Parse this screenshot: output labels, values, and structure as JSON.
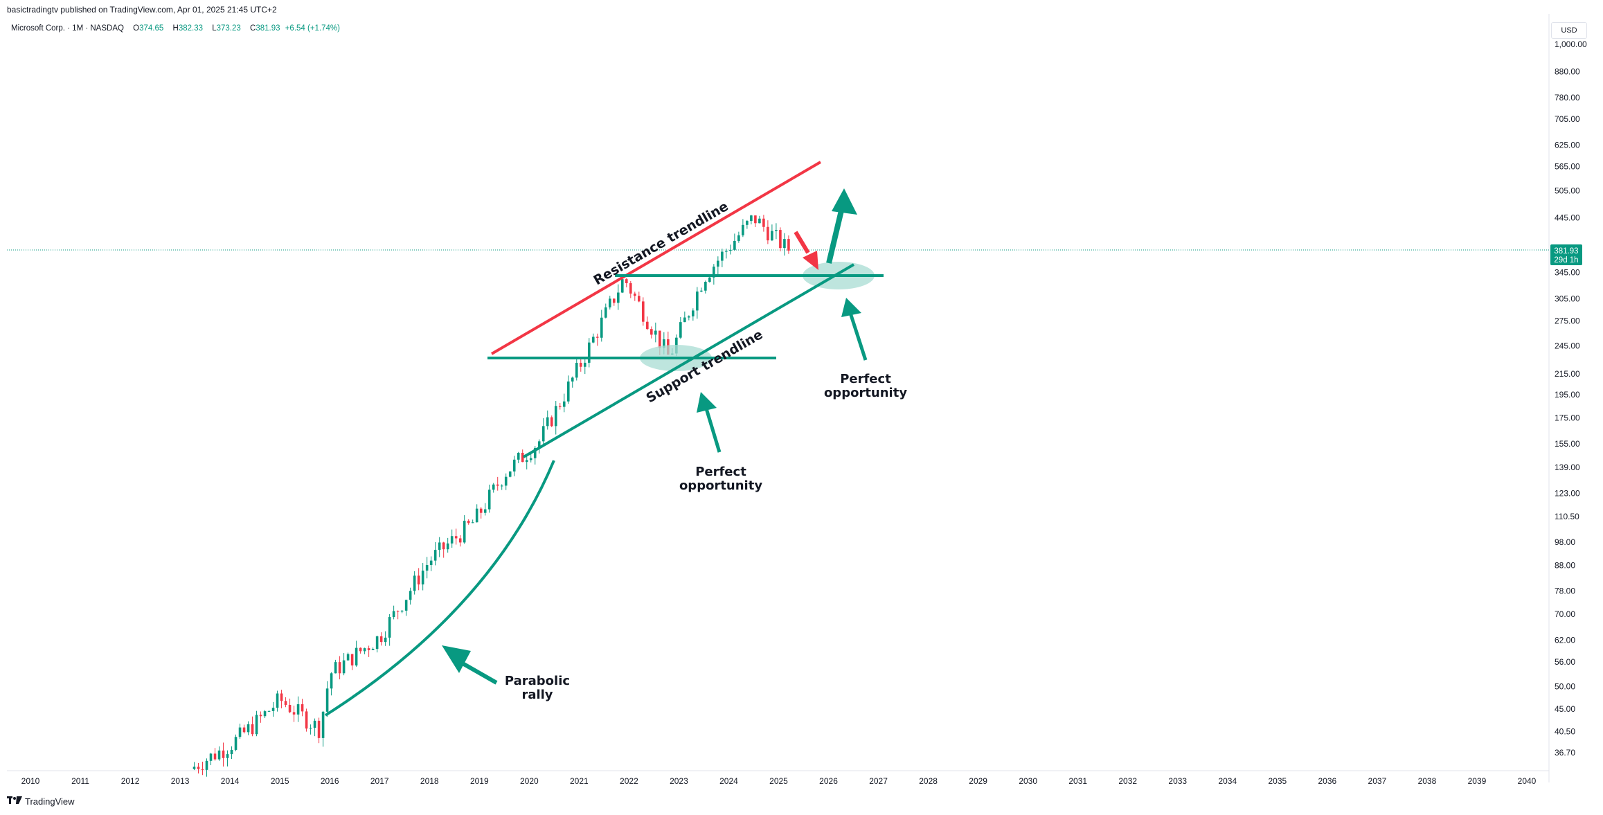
{
  "header": {
    "published": "basictradingtv published on TradingView.com, Apr 01, 2025 21:45 UTC+2",
    "symbol": "Microsoft Corp. · 1M · NASDAQ",
    "o_label": "O",
    "o_value": "374.65",
    "h_label": "H",
    "h_value": "382.33",
    "l_label": "L",
    "l_value": "373.23",
    "c_label": "C",
    "c_value": "381.93",
    "change": "+6.54 (+1.74%)"
  },
  "currency": "USD",
  "footer": {
    "brand": "TradingView",
    "logo": "tradingview-logo-icon"
  },
  "colors": {
    "up": "#089981",
    "down": "#f23645",
    "resistance": "#f23645",
    "support": "#089981",
    "zone": "#a8dcd3"
  },
  "price_box": {
    "price": "381.93",
    "countdown": "29d 1h"
  },
  "annotations": {
    "resistance": "Resistance trendline",
    "support": "Support trendline",
    "perfect1_line1": "Perfect",
    "perfect1_line2": "opportunity",
    "perfect2_line1": "Perfect",
    "perfect2_line2": "opportunity",
    "parabolic_line1": "Parabolic",
    "parabolic_line2": "rally"
  },
  "chart_data": {
    "type": "candlestick",
    "scale": "log",
    "x_ticks": [
      "2010",
      "2011",
      "2012",
      "2013",
      "2014",
      "2015",
      "2016",
      "2017",
      "2018",
      "2019",
      "2020",
      "2021",
      "2022",
      "2023",
      "2024",
      "2025",
      "2026",
      "2027",
      "2028",
      "2029",
      "2030",
      "2031",
      "2032",
      "2033",
      "2034",
      "2035",
      "2036",
      "2037",
      "2038",
      "2039",
      "2040"
    ],
    "y_ticks": [
      "1,000.00",
      "880.00",
      "780.00",
      "705.00",
      "625.00",
      "565.00",
      "505.00",
      "445.00",
      "345.00",
      "305.00",
      "275.00",
      "245.00",
      "215.00",
      "195.00",
      "175.00",
      "155.00",
      "139.00",
      "123.00",
      "110.50",
      "98.00",
      "88.00",
      "78.00",
      "70.00",
      "62.00",
      "56.00",
      "50.00",
      "45.00",
      "40.50",
      "36.70"
    ],
    "last_price": 381.93,
    "series": [
      {
        "year": 2013.2,
        "close": 34
      },
      {
        "year": 2014.0,
        "close": 38
      },
      {
        "year": 2014.5,
        "close": 42
      },
      {
        "year": 2015.0,
        "close": 47
      },
      {
        "year": 2015.8,
        "close": 41
      },
      {
        "year": 2016.0,
        "close": 53
      },
      {
        "year": 2017.0,
        "close": 63
      },
      {
        "year": 2018.0,
        "close": 90
      },
      {
        "year": 2018.9,
        "close": 108
      },
      {
        "year": 2019.5,
        "close": 135
      },
      {
        "year": 2020.2,
        "close": 157
      },
      {
        "year": 2021.0,
        "close": 222
      },
      {
        "year": 2021.9,
        "close": 336
      },
      {
        "year": 2022.8,
        "close": 232
      },
      {
        "year": 2023.5,
        "close": 338
      },
      {
        "year": 2024.5,
        "close": 446
      },
      {
        "year": 2025.2,
        "close": 381.93
      }
    ]
  }
}
